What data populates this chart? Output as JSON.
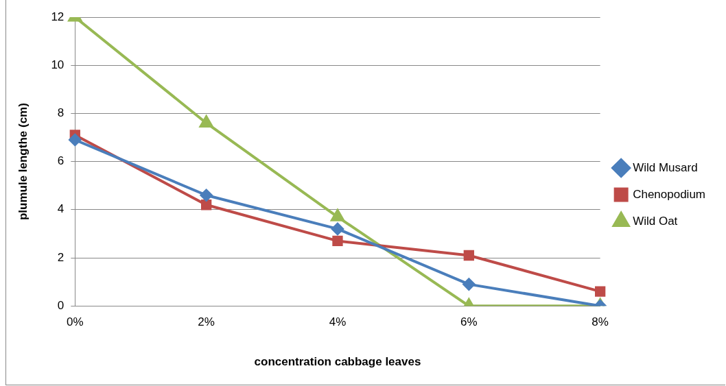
{
  "chart_data": {
    "type": "line",
    "xlabel": "concentration cabbage leaves",
    "ylabel": "plumule lengthe (cm)",
    "categories": [
      "0%",
      "2%",
      "4%",
      "6%",
      "8%"
    ],
    "series": [
      {
        "name": "Wild Musard",
        "color": "#4a7ebb",
        "marker": "diamond",
        "values": [
          6.9,
          4.6,
          3.2,
          0.9,
          0
        ]
      },
      {
        "name": "Chenopodium",
        "color": "#be4b48",
        "marker": "square",
        "values": [
          7.1,
          4.2,
          2.7,
          2.1,
          0.6
        ]
      },
      {
        "name": "Wild Oat",
        "color": "#98b954",
        "marker": "triangle",
        "values": [
          12,
          7.6,
          3.7,
          0,
          0
        ]
      }
    ],
    "ylim": [
      0,
      12
    ],
    "yticks": [
      0,
      2,
      4,
      6,
      8,
      10,
      12
    ],
    "grid": "y",
    "legend": "right"
  }
}
